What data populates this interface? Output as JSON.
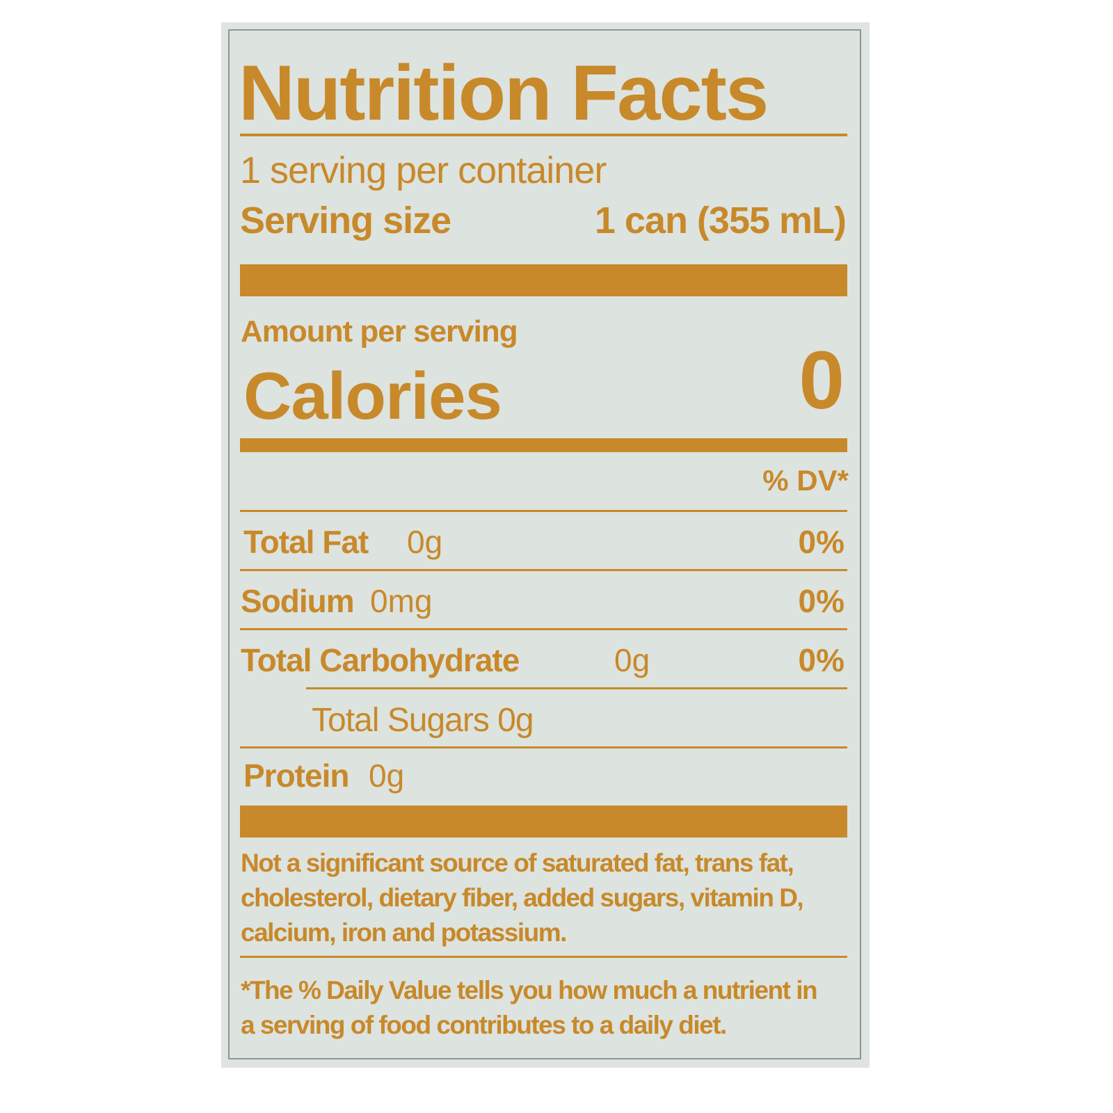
{
  "label": {
    "title": "Nutrition Facts",
    "servings_per_container": "1 serving per container",
    "serving_size_label": "Serving size",
    "serving_size_value": "1 can (355 mL)",
    "amount_per_serving": "Amount per serving",
    "calories_label": "Calories",
    "calories_value": "0",
    "dv_header": "% DV*",
    "nutrients": [
      {
        "name": "Total Fat",
        "amount": "0g",
        "dv": "0%"
      },
      {
        "name": "Sodium",
        "amount": "0mg",
        "dv": "0%"
      },
      {
        "name": "Total Carbohydrate",
        "amount": "0g",
        "dv": "0%"
      },
      {
        "name": "Total Sugars 0g",
        "amount": "",
        "dv": ""
      },
      {
        "name": "Protein",
        "amount": "0g",
        "dv": ""
      }
    ],
    "footnote_lines": [
      "Not a significant source of saturated fat, trans fat,",
      "cholesterol, dietary fiber, added sugars, vitamin D,",
      "calcium, iron and potassium."
    ],
    "dv_note_lines": [
      "*The % Daily Value tells you how much a nutrient in",
      "a serving of food contributes to a daily diet."
    ]
  },
  "colors": {
    "ink": "#c8892a",
    "background": "#dde3df",
    "border": "#8f9593"
  }
}
